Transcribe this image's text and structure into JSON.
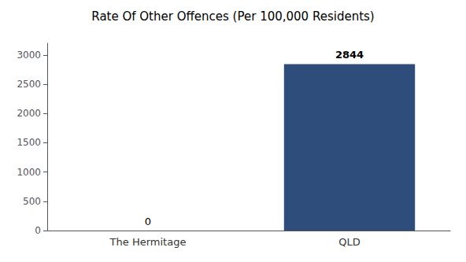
{
  "chart_data": {
    "type": "bar",
    "title": "Rate Of Other Offences (Per 100,000 Residents)",
    "categories": [
      "The Hermitage",
      "QLD"
    ],
    "values": [
      0,
      2844
    ],
    "color": "#2e4d7b",
    "ylim": [
      0,
      3200
    ],
    "yticks": [
      0,
      500,
      1000,
      1500,
      2000,
      2500,
      3000
    ],
    "grid": false,
    "data_labels": true
  }
}
